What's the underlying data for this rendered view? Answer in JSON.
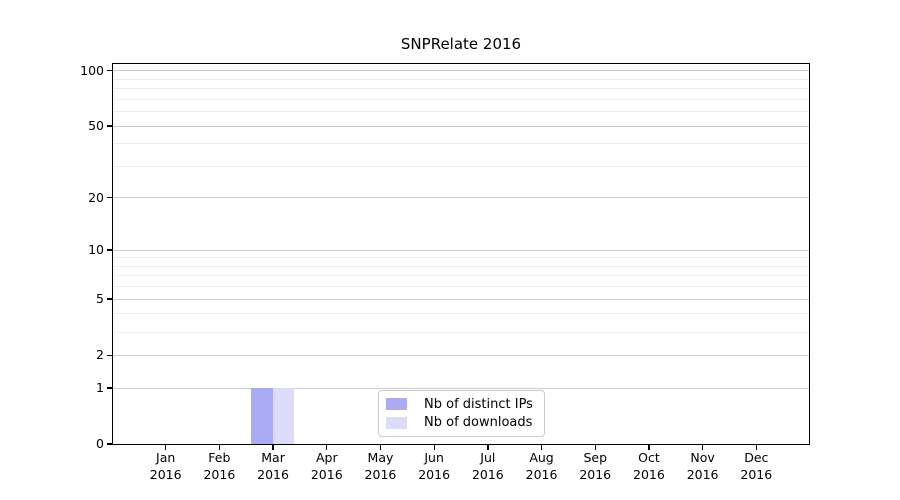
{
  "chart_data": {
    "type": "bar",
    "title": "SNPRelate 2016",
    "categories": [
      "Jan 2016",
      "Feb 2016",
      "Mar 2016",
      "Apr 2016",
      "May 2016",
      "Jun 2016",
      "Jul 2016",
      "Aug 2016",
      "Sep 2016",
      "Oct 2016",
      "Nov 2016",
      "Dec 2016"
    ],
    "series": [
      {
        "name": "Nb of distinct IPs",
        "color": "#aaaaf5",
        "values": [
          0,
          0,
          1,
          0,
          0,
          0,
          0,
          0,
          0,
          0,
          0,
          0
        ]
      },
      {
        "name": "Nb of downloads",
        "color": "#dcdcfa",
        "values": [
          0,
          0,
          1,
          0,
          0,
          0,
          0,
          0,
          0,
          0,
          0,
          0
        ]
      }
    ],
    "yscale": "log1p",
    "ylim": [
      0,
      110
    ],
    "yticks_major": [
      0,
      1,
      2,
      5,
      10,
      20,
      50,
      100
    ],
    "yticks_minor": [
      3,
      4,
      6,
      7,
      8,
      9,
      30,
      40,
      60,
      70,
      80,
      90
    ],
    "grid": true,
    "legend_position": "bottom-center-inside"
  },
  "colors": {
    "background": "#ffffff",
    "spine": "#000000",
    "major_grid": "#cccccc",
    "minor_grid": "#ececec",
    "tick_text": "#000000",
    "legend_border": "#cccccc"
  }
}
